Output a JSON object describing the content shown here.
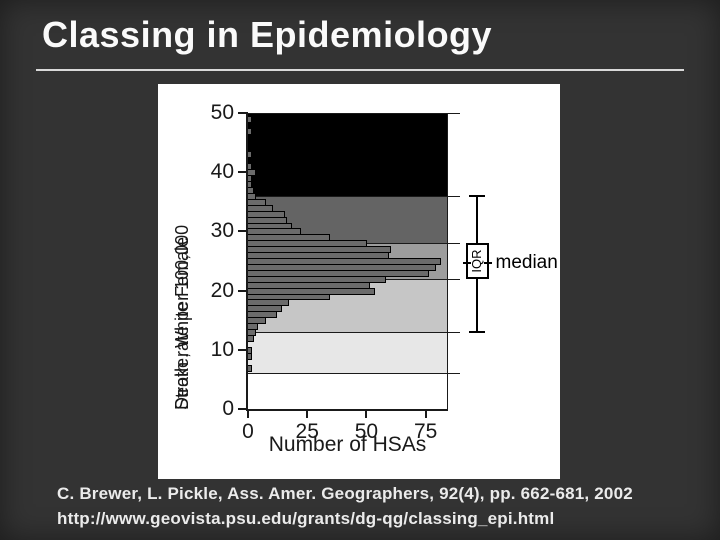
{
  "slide": {
    "title": "Classing in Epidemiology",
    "citation": {
      "line1": "C. Brewer, L. Pickle, Ass. Amer. Geographers, 92(4), pp. 662-681, 2002",
      "line2": "http://www.geovista.psu.edu/grants/dg-qg/classing_epi.html"
    },
    "colors": {
      "background": "#333333",
      "title_text": "#fafafa",
      "separator": "#d9d9d9",
      "citation_text": "#ebebeb",
      "panel_background": "#ffffff"
    }
  },
  "chart_data": {
    "type": "bar",
    "orientation": "horizontal-histogram",
    "title": "",
    "xlabel": "Number of HSAs",
    "ylabel": [
      "Stroke, White Female",
      "Death rate per 100,000"
    ],
    "xlim": [
      0,
      84
    ],
    "ylim": [
      0,
      50
    ],
    "xticks": [
      0,
      25,
      50,
      75
    ],
    "yticks": [
      0,
      10,
      20,
      30,
      40,
      50
    ],
    "grid": false,
    "bar_color": "#6b6b6b",
    "bar_border_color": "#000000",
    "axis_color": "#1a1a1a",
    "bins": {
      "rate": [
        49,
        47,
        43,
        41,
        40,
        39,
        38,
        37,
        36,
        35,
        34,
        33,
        32,
        31,
        30,
        29,
        28,
        27,
        26,
        25,
        24,
        23,
        22,
        21,
        20,
        19,
        18,
        17,
        16,
        15,
        14,
        13,
        12,
        10,
        9,
        7
      ],
      "count": [
        1,
        1,
        1,
        1,
        3,
        1,
        1,
        2,
        3,
        7,
        10,
        15,
        16,
        18,
        22,
        34,
        50,
        60,
        59,
        81,
        79,
        76,
        58,
        51,
        53,
        34,
        17,
        14,
        12,
        7,
        4,
        3,
        2,
        1,
        1,
        1
      ]
    },
    "class_bands": [
      {
        "from": 36,
        "to": 50,
        "color": "#000000"
      },
      {
        "from": 28,
        "to": 36,
        "color": "#646464"
      },
      {
        "from": 22,
        "to": 28,
        "color": "#9d9d9d"
      },
      {
        "from": 13,
        "to": 22,
        "color": "#c6c6c6"
      },
      {
        "from": 6,
        "to": 13,
        "color": "#e7e7e7"
      },
      {
        "from": 0,
        "to": 6,
        "color": "#ffffff"
      }
    ],
    "band_boundary_ticks": [
      50,
      36,
      28,
      22,
      13,
      6
    ],
    "boxplot": {
      "whisker_low": 13,
      "q1": 22,
      "median": 24.7,
      "q3": 28,
      "whisker_high": 36,
      "box_label": "IQR",
      "median_label": "median",
      "color": "#000000"
    }
  }
}
